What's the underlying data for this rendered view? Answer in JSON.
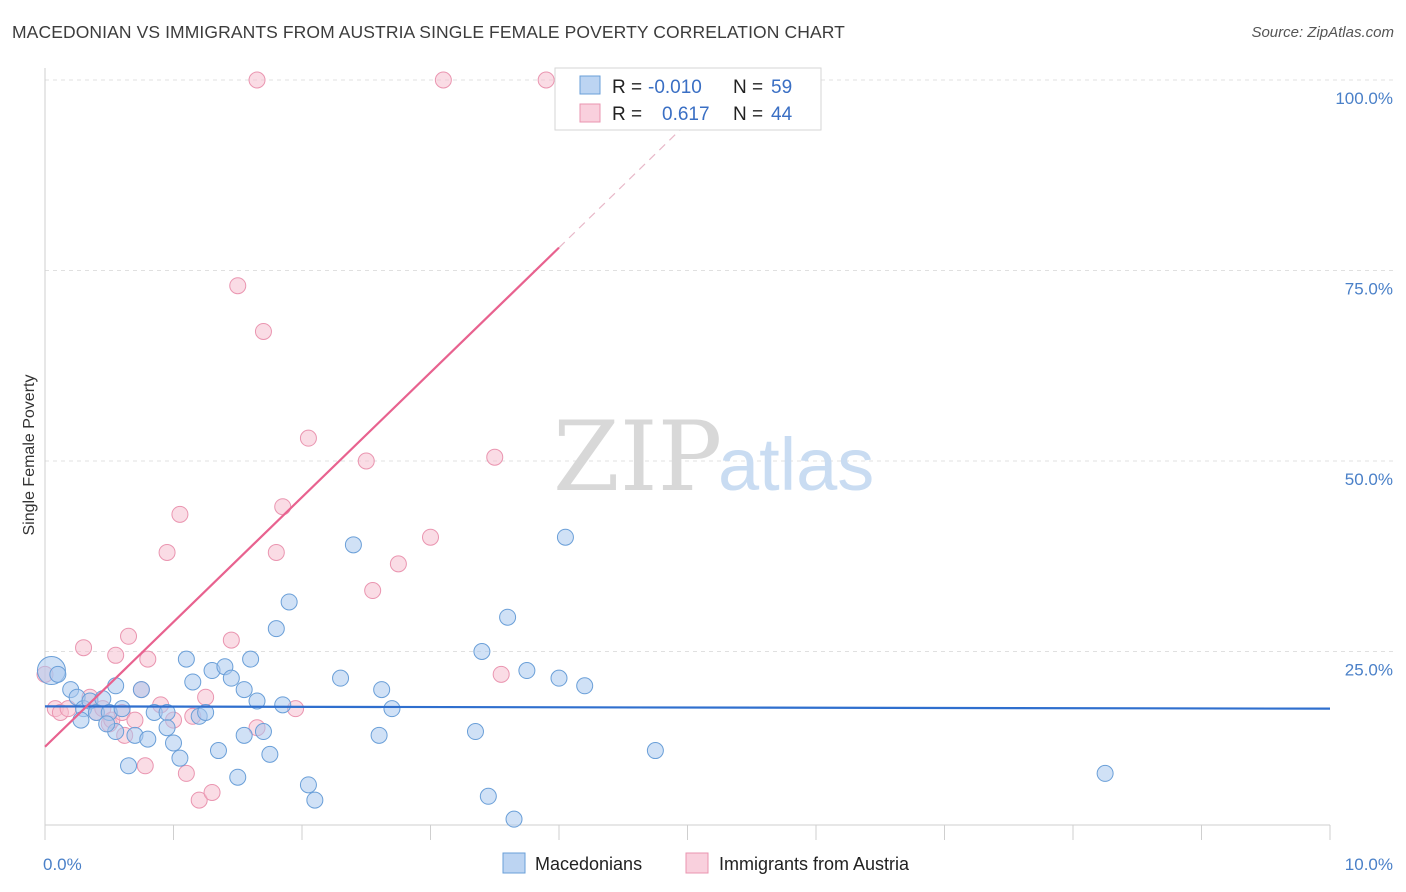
{
  "header": {
    "title": "MACEDONIAN VS IMMIGRANTS FROM AUSTRIA SINGLE FEMALE POVERTY CORRELATION CHART",
    "source": "Source: ZipAtlas.com"
  },
  "watermark": {
    "zip": "ZIP",
    "atlas": "atlas"
  },
  "colors": {
    "blue_fill": "#a9c8ee",
    "blue_stroke": "#6a9fd8",
    "blue_line": "#2f6fce",
    "pink_fill": "#f6bfd0",
    "pink_stroke": "#ea95b0",
    "pink_line": "#e8628f",
    "tick_text": "#4a80c8",
    "grid": "#e0e0e0"
  },
  "legend": {
    "rows": [
      {
        "r_label": "R =",
        "r_value": "-0.010",
        "n_label": "N =",
        "n_value": "59"
      },
      {
        "r_label": "R =",
        "r_value": "0.617",
        "n_label": "N =",
        "n_value": "44"
      }
    ]
  },
  "chart_data": {
    "type": "scatter",
    "title": "MACEDONIAN VS IMMIGRANTS FROM AUSTRIA SINGLE FEMALE POVERTY CORRELATION CHART",
    "xlabel": "",
    "ylabel": "Single Female Poverty",
    "xlim": [
      0,
      10
    ],
    "ylim": [
      0,
      102
    ],
    "x_tick_labels": [
      "0.0%",
      "10.0%"
    ],
    "y_ticks": [
      25,
      50,
      75,
      100
    ],
    "y_tick_labels": [
      "25.0%",
      "50.0%",
      "75.0%",
      "100.0%"
    ],
    "grid": true,
    "legend_position": "top-center",
    "series": [
      {
        "name": "Macedonians",
        "color": "blue",
        "r": -0.01,
        "n": 59,
        "trend": {
          "x0": 0.0,
          "y0": 17.8,
          "x1": 10.0,
          "y1": 17.5
        },
        "points": [
          [
            0.05,
            22.5
          ],
          [
            0.1,
            22.0
          ],
          [
            0.2,
            20.0
          ],
          [
            0.25,
            19.0
          ],
          [
            0.3,
            17.5
          ],
          [
            0.28,
            16.0
          ],
          [
            0.35,
            18.5
          ],
          [
            0.4,
            17.0
          ],
          [
            0.45,
            18.8
          ],
          [
            0.5,
            17.0
          ],
          [
            0.55,
            14.5
          ],
          [
            0.6,
            17.5
          ],
          [
            0.55,
            20.5
          ],
          [
            0.75,
            20.0
          ],
          [
            0.85,
            17.0
          ],
          [
            0.95,
            17.0
          ],
          [
            0.7,
            14.0
          ],
          [
            0.65,
            10.0
          ],
          [
            0.8,
            13.5
          ],
          [
            0.95,
            15.0
          ],
          [
            1.0,
            13.0
          ],
          [
            1.05,
            11.0
          ],
          [
            1.1,
            24.0
          ],
          [
            1.15,
            21.0
          ],
          [
            1.2,
            16.5
          ],
          [
            1.25,
            17.0
          ],
          [
            1.3,
            22.5
          ],
          [
            1.35,
            12.0
          ],
          [
            1.4,
            23.0
          ],
          [
            1.45,
            21.5
          ],
          [
            1.5,
            8.5
          ],
          [
            1.55,
            14.0
          ],
          [
            1.6,
            24.0
          ],
          [
            1.65,
            18.5
          ],
          [
            1.7,
            14.5
          ],
          [
            1.75,
            11.5
          ],
          [
            1.8,
            28.0
          ],
          [
            1.85,
            18.0
          ],
          [
            1.9,
            31.5
          ],
          [
            2.05,
            7.5
          ],
          [
            2.1,
            5.5
          ],
          [
            2.3,
            21.5
          ],
          [
            2.4,
            39.0
          ],
          [
            2.6,
            14.0
          ],
          [
            2.62,
            20.0
          ],
          [
            2.7,
            17.5
          ],
          [
            3.35,
            14.5
          ],
          [
            3.4,
            25.0
          ],
          [
            3.45,
            6.0
          ],
          [
            3.6,
            29.5
          ],
          [
            3.65,
            3.0
          ],
          [
            3.75,
            22.5
          ],
          [
            4.0,
            21.5
          ],
          [
            4.05,
            40.0
          ],
          [
            4.2,
            20.5
          ],
          [
            4.75,
            12.0
          ],
          [
            8.25,
            9.0
          ],
          [
            1.55,
            20.0
          ],
          [
            0.48,
            15.5
          ]
        ]
      },
      {
        "name": "Immigrants from Austria",
        "color": "pink",
        "r": 0.617,
        "n": 44,
        "trend": {
          "x0": 0.0,
          "y0": 12.5,
          "x1": 4.0,
          "y1": 78.0,
          "ext_x1": 5.0,
          "ext_y1": 94.4
        },
        "points": [
          [
            0.0,
            22.0
          ],
          [
            0.08,
            17.5
          ],
          [
            0.12,
            17.0
          ],
          [
            0.18,
            17.5
          ],
          [
            0.3,
            25.5
          ],
          [
            0.35,
            19.0
          ],
          [
            0.4,
            17.0
          ],
          [
            0.45,
            17.5
          ],
          [
            0.5,
            15.5
          ],
          [
            0.52,
            16.0
          ],
          [
            0.55,
            24.5
          ],
          [
            0.6,
            17.0
          ],
          [
            0.62,
            14.0
          ],
          [
            0.65,
            27.0
          ],
          [
            0.7,
            16.0
          ],
          [
            0.75,
            20.0
          ],
          [
            0.78,
            10.0
          ],
          [
            0.8,
            24.0
          ],
          [
            0.9,
            18.0
          ],
          [
            0.95,
            38.0
          ],
          [
            1.0,
            16.0
          ],
          [
            1.05,
            43.0
          ],
          [
            1.1,
            9.0
          ],
          [
            1.15,
            16.5
          ],
          [
            1.2,
            5.5
          ],
          [
            1.25,
            19.0
          ],
          [
            1.3,
            6.5
          ],
          [
            1.45,
            26.5
          ],
          [
            1.5,
            73.0
          ],
          [
            1.65,
            100.0
          ],
          [
            1.7,
            67.0
          ],
          [
            1.65,
            15.0
          ],
          [
            1.8,
            38.0
          ],
          [
            1.85,
            44.0
          ],
          [
            1.95,
            17.5
          ],
          [
            2.05,
            53.0
          ],
          [
            2.5,
            50.0
          ],
          [
            2.55,
            33.0
          ],
          [
            2.75,
            36.5
          ],
          [
            3.0,
            40.0
          ],
          [
            3.1,
            100.0
          ],
          [
            3.5,
            50.5
          ],
          [
            3.55,
            22.0
          ],
          [
            3.9,
            100.0
          ]
        ]
      }
    ]
  },
  "bottom_legend": {
    "items": [
      {
        "label": "Macedonians"
      },
      {
        "label": "Immigrants from Austria"
      }
    ]
  }
}
